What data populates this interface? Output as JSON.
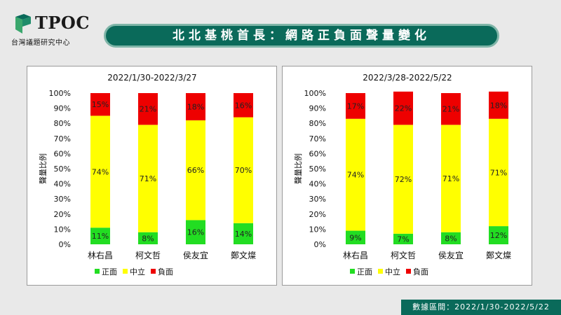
{
  "header": {
    "logo_text": "TPOC",
    "logo_subtitle": "台灣議題研究中心",
    "title": "北北基桃首長：網路正負面聲量變化"
  },
  "footer": {
    "text": "數據區間：2022/1/30-2022/5/22"
  },
  "colors": {
    "positive": "#22dd22",
    "neutral": "#ffff00",
    "negative": "#ee0000",
    "brand": "#0a6a5a"
  },
  "chart_data": [
    {
      "type": "bar",
      "stacked": true,
      "title": "2022/1/30-2022/3/27",
      "xlabel": "",
      "ylabel": "聲量比例",
      "ylim": [
        0,
        100
      ],
      "yticks": [
        "0%",
        "10%",
        "20%",
        "30%",
        "40%",
        "50%",
        "60%",
        "70%",
        "80%",
        "90%",
        "100%"
      ],
      "categories": [
        "林右昌",
        "柯文哲",
        "侯友宜",
        "鄭文燦"
      ],
      "series": [
        {
          "name": "正面",
          "values": [
            11,
            8,
            16,
            14
          ],
          "labels": [
            "11%",
            "8%",
            "16%",
            "14%"
          ]
        },
        {
          "name": "中立",
          "values": [
            74,
            71,
            66,
            70
          ],
          "labels": [
            "74%",
            "71%",
            "66%",
            "70%"
          ]
        },
        {
          "name": "負面",
          "values": [
            15,
            21,
            18,
            16
          ],
          "labels": [
            "15%",
            "21%",
            "18%",
            "16%"
          ]
        }
      ],
      "legend": "bottom",
      "grid": false
    },
    {
      "type": "bar",
      "stacked": true,
      "title": "2022/3/28-2022/5/22",
      "xlabel": "",
      "ylabel": "聲量比例",
      "ylim": [
        0,
        100
      ],
      "yticks": [
        "0%",
        "10%",
        "20%",
        "30%",
        "40%",
        "50%",
        "60%",
        "70%",
        "80%",
        "90%",
        "100%"
      ],
      "categories": [
        "林右昌",
        "柯文哲",
        "侯友宜",
        "鄭文燦"
      ],
      "series": [
        {
          "name": "正面",
          "values": [
            9,
            7,
            8,
            12
          ],
          "labels": [
            "9%",
            "7%",
            "8%",
            "12%"
          ]
        },
        {
          "name": "中立",
          "values": [
            74,
            72,
            71,
            71
          ],
          "labels": [
            "74%",
            "72%",
            "71%",
            "71%"
          ]
        },
        {
          "name": "負面",
          "values": [
            17,
            22,
            21,
            18
          ],
          "labels": [
            "17%",
            "22%",
            "21%",
            "18%"
          ]
        }
      ],
      "legend": "bottom",
      "grid": false
    }
  ]
}
